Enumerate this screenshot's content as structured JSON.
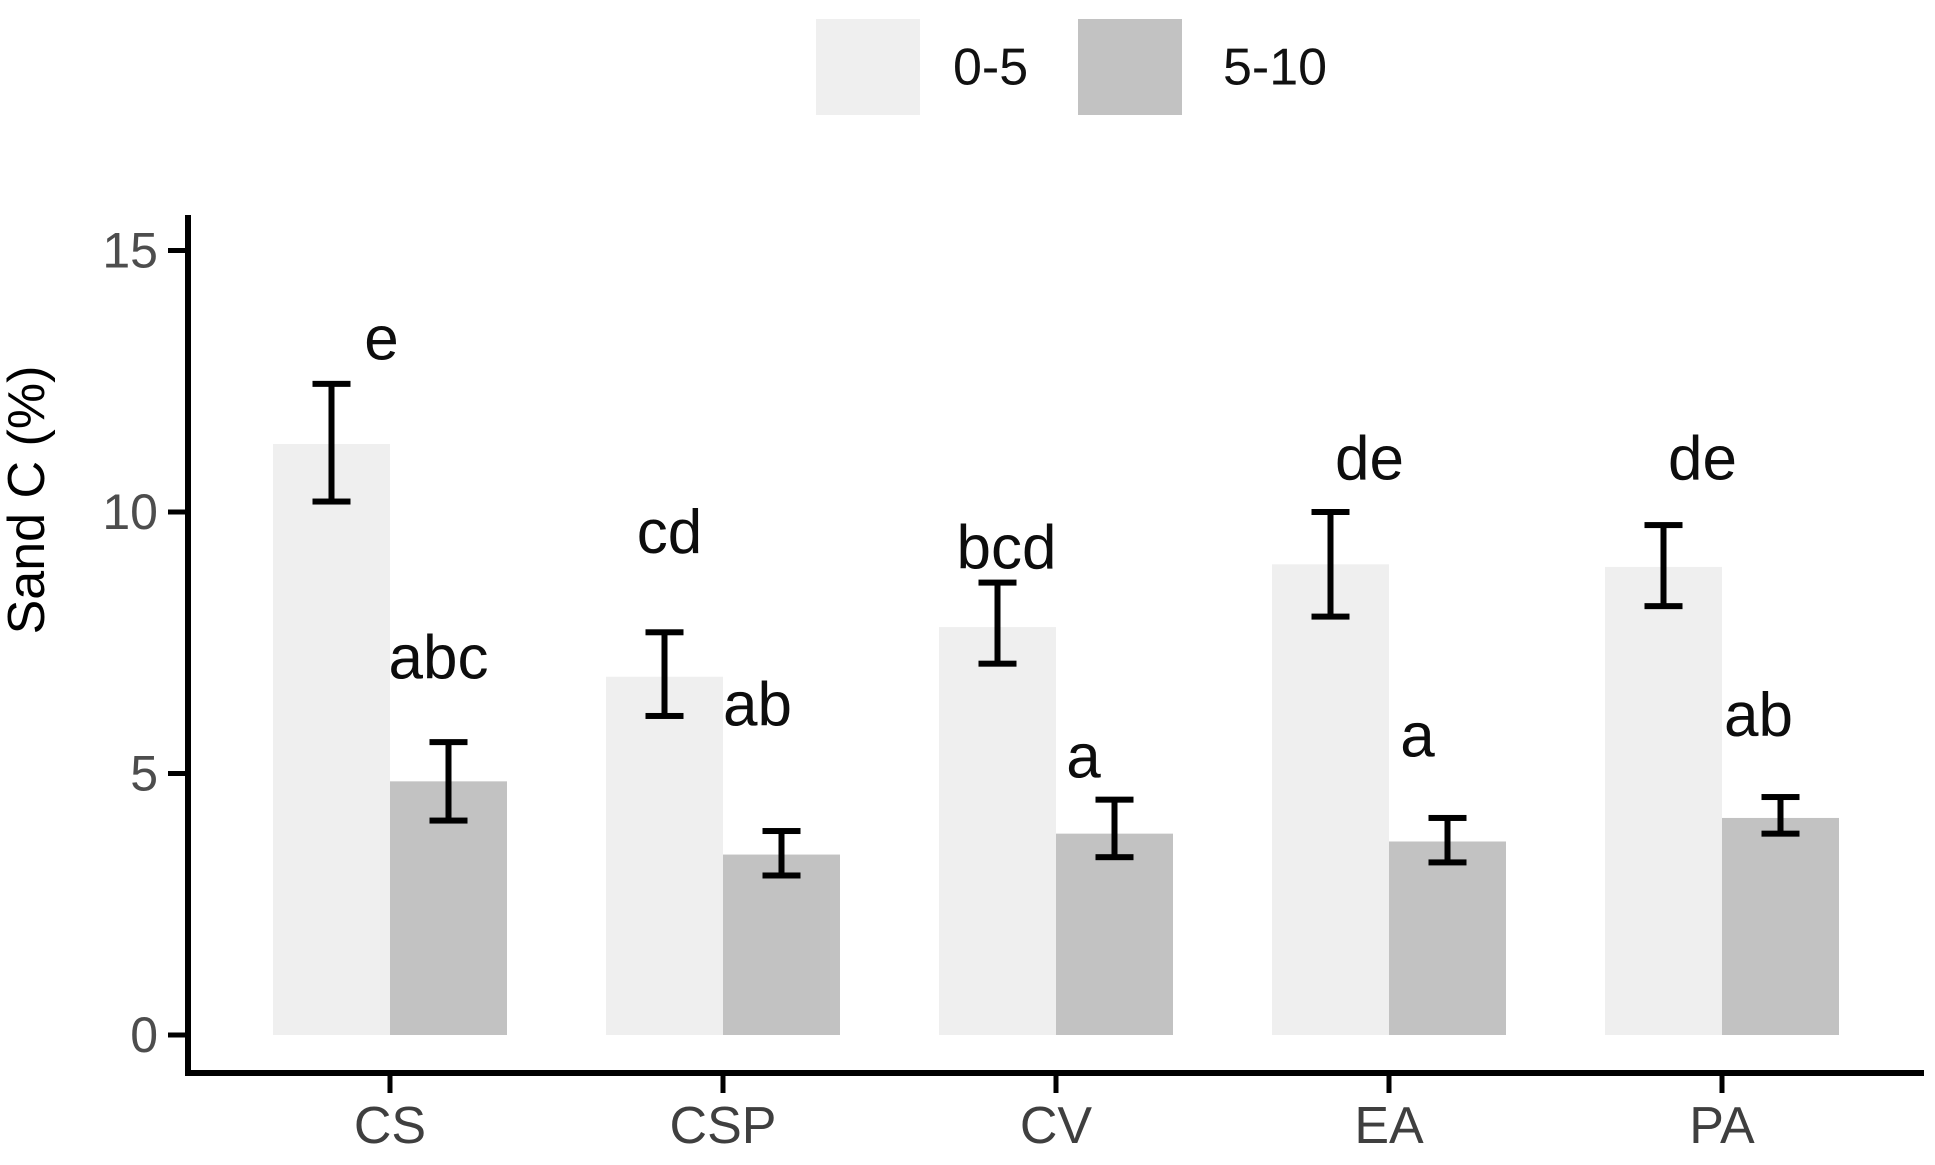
{
  "chart_data": {
    "type": "bar",
    "title": "",
    "xlabel": "",
    "ylabel": "Sand C (%)",
    "categories": [
      "CS",
      "CSP",
      "CV",
      "EA",
      "PA"
    ],
    "y_axis": {
      "ticks": [
        0,
        5,
        10,
        15
      ],
      "range": [
        0,
        15.7
      ]
    },
    "legend": {
      "position": "top",
      "items": [
        "0-5",
        "5-10"
      ]
    },
    "series": [
      {
        "name": "0-5",
        "color": "#efefef",
        "values": [
          11.3,
          6.85,
          7.8,
          9.0,
          8.95
        ],
        "err_low": [
          10.2,
          6.1,
          7.1,
          8.0,
          8.2
        ],
        "err_high": [
          12.45,
          7.7,
          8.65,
          10.0,
          9.75
        ],
        "sig_letters": [
          "e",
          "cd",
          "bcd",
          "de",
          "de"
        ],
        "sig_letter_y": [
          13.3,
          9.6,
          9.3,
          11.0,
          11.0
        ],
        "sig_letter_dx": [
          50,
          5,
          9,
          39,
          39
        ]
      },
      {
        "name": "5-10",
        "color": "#c2c2c2",
        "values": [
          4.85,
          3.45,
          3.85,
          3.7,
          4.15
        ],
        "err_low": [
          4.1,
          3.05,
          3.4,
          3.3,
          3.85
        ],
        "err_high": [
          5.6,
          3.9,
          4.5,
          4.15,
          4.55
        ],
        "sig_letters": [
          "abc",
          "ab",
          "a",
          "a",
          "ab"
        ],
        "sig_letter_y": [
          7.2,
          6.3,
          5.3,
          5.7,
          6.1
        ],
        "sig_letter_dx": [
          -10,
          -24,
          -31,
          -30,
          -22
        ]
      }
    ],
    "colors": {
      "axis_line": "#000000",
      "error_bar": "#000000",
      "tick_label": "#4d4d4d",
      "x_label": "#3f3f3f",
      "sig_letter": "#0d0d0d",
      "axis_title": "#000000",
      "background": "#ffffff"
    }
  }
}
